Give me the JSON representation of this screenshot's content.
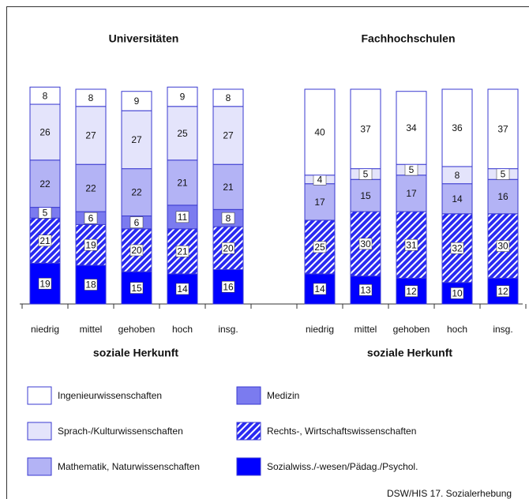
{
  "chart_data": [
    {
      "type": "bar",
      "stacked": true,
      "title": "Universitäten",
      "x_label": "soziale Herkunft",
      "categories": [
        "niedrig",
        "mittel",
        "gehoben",
        "hoch",
        "insg."
      ],
      "ylim": [
        0,
        100
      ],
      "series": [
        {
          "name": "Sozialwiss./-wesen/Pädag./Psychol.",
          "color": "#0000ff",
          "values": [
            19,
            18,
            15,
            14,
            16
          ]
        },
        {
          "name": "Rechts-, Wirtschaftswissenschaften",
          "color": "#2a2af2",
          "pattern": "hatch",
          "values": [
            21,
            19,
            20,
            21,
            20
          ]
        },
        {
          "name": "Medizin",
          "color": "#7b7bef",
          "values": [
            5,
            6,
            6,
            11,
            8
          ]
        },
        {
          "name": "Mathematik, Naturwissenschaften",
          "color": "#b3b3f5",
          "values": [
            22,
            22,
            22,
            21,
            21
          ]
        },
        {
          "name": "Sprach-/Kulturwissenschaften",
          "color": "#e4e4fb",
          "values": [
            26,
            27,
            27,
            25,
            27
          ]
        },
        {
          "name": "Ingenieurwissenschaften",
          "color": "#ffffff",
          "values": [
            8,
            8,
            9,
            9,
            8
          ]
        }
      ]
    },
    {
      "type": "bar",
      "stacked": true,
      "title": "Fachhochschulen",
      "x_label": "soziale Herkunft",
      "categories": [
        "niedrig",
        "mittel",
        "gehoben",
        "hoch",
        "insg."
      ],
      "ylim": [
        0,
        100
      ],
      "series": [
        {
          "color": "#0000ff",
          "values": [
            14,
            13,
            12,
            10,
            12
          ]
        },
        {
          "color": "#2a2af2",
          "pattern": "hatch",
          "values": [
            25,
            30,
            31,
            32,
            30
          ]
        },
        {
          "color": "#b3b3f5",
          "values": [
            17,
            15,
            17,
            14,
            16
          ]
        },
        {
          "color": "#e4e4fb",
          "values": [
            4,
            5,
            5,
            8,
            5
          ]
        },
        {
          "color": "#ffffff",
          "values": [
            40,
            37,
            34,
            36,
            37
          ]
        }
      ]
    }
  ],
  "source": "DSW/HIS 17. Sozialerhebung"
}
